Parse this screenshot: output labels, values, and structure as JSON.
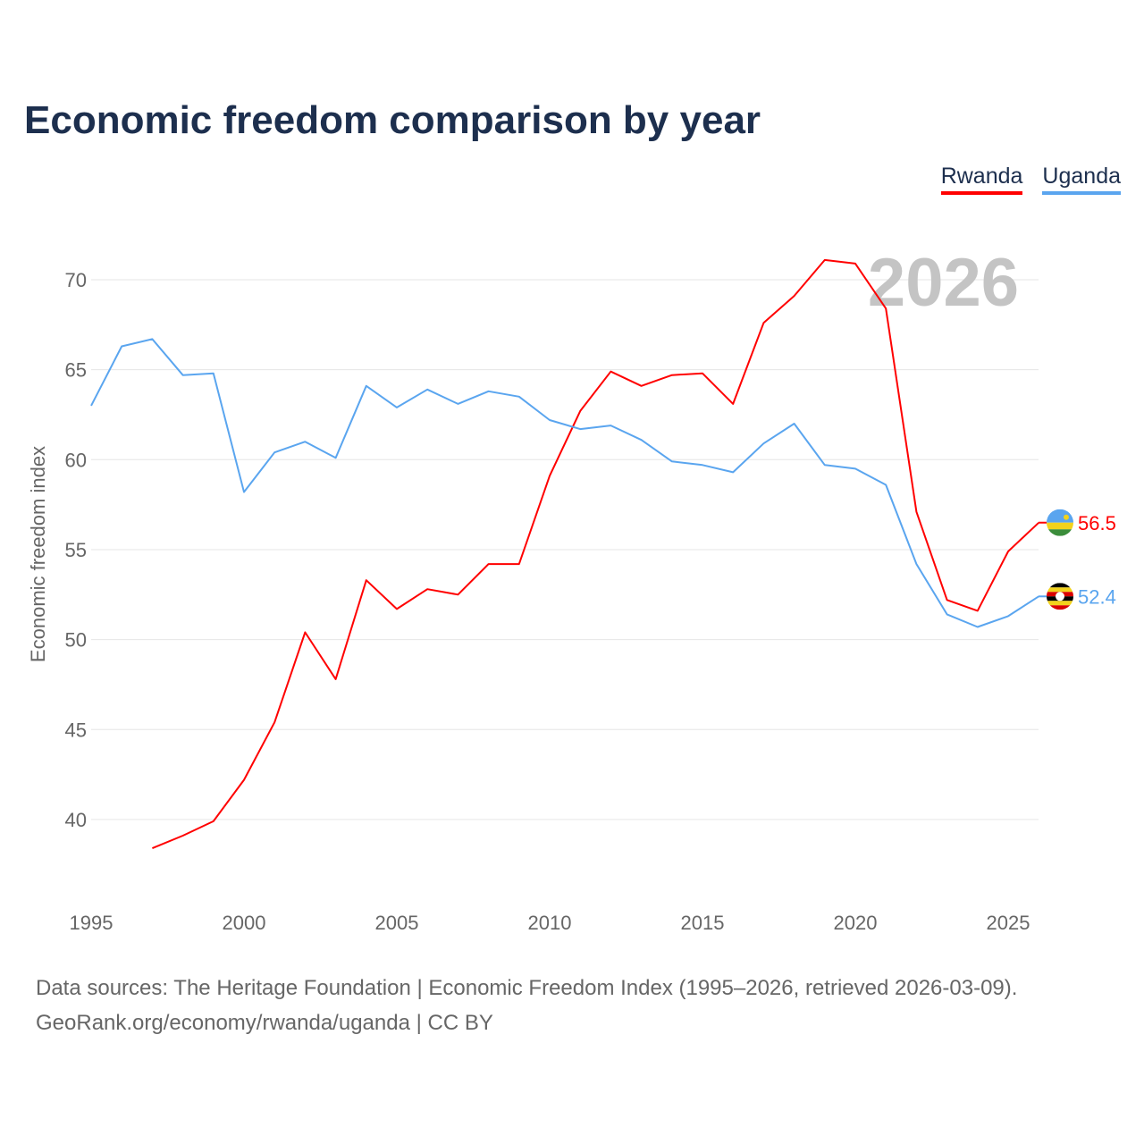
{
  "title": "Economic freedom comparison by year",
  "legend": [
    {
      "name": "Rwanda",
      "color": "#ff0000"
    },
    {
      "name": "Uganda",
      "color": "#5aa5ef"
    }
  ],
  "year_watermark": "2026",
  "footer": {
    "line1": "Data sources: The Heritage Foundation | Economic Freedom Index (1995–2026, retrieved 2026-03-09).",
    "line2": "GeoRank.org/economy/rwanda/uganda | CC BY"
  },
  "chart_data": {
    "type": "line",
    "title": "Economic freedom comparison by year",
    "xlabel": "",
    "ylabel": "Economic freedom index",
    "xlim": [
      1995,
      2026
    ],
    "ylim": [
      35.4,
      71.6
    ],
    "xticks": [
      1995,
      2000,
      2005,
      2010,
      2015,
      2020,
      2025
    ],
    "yticks": [
      40,
      45,
      50,
      55,
      60,
      65,
      70
    ],
    "grid": true,
    "legend_position": "top-right",
    "series": [
      {
        "name": "Rwanda",
        "color": "#ff0000",
        "end_label": "56.5",
        "x": [
          1997,
          1998,
          1999,
          2000,
          2001,
          2002,
          2003,
          2004,
          2005,
          2006,
          2007,
          2008,
          2009,
          2010,
          2011,
          2012,
          2013,
          2014,
          2015,
          2016,
          2017,
          2018,
          2019,
          2020,
          2021,
          2022,
          2023,
          2024,
          2025,
          2026
        ],
        "values": [
          38.4,
          39.1,
          39.9,
          42.2,
          45.4,
          50.4,
          47.8,
          53.3,
          51.7,
          52.8,
          52.5,
          54.2,
          54.2,
          59.1,
          62.7,
          64.9,
          64.1,
          64.7,
          64.8,
          63.1,
          67.6,
          69.1,
          71.1,
          70.9,
          68.4,
          57.1,
          52.2,
          51.6,
          54.9,
          56.5
        ]
      },
      {
        "name": "Uganda",
        "color": "#5aa5ef",
        "end_label": "52.4",
        "x": [
          1995,
          1996,
          1997,
          1998,
          1999,
          2000,
          2001,
          2002,
          2003,
          2004,
          2005,
          2006,
          2007,
          2008,
          2009,
          2010,
          2011,
          2012,
          2013,
          2014,
          2015,
          2016,
          2017,
          2018,
          2019,
          2020,
          2021,
          2022,
          2023,
          2024,
          2025,
          2026
        ],
        "values": [
          63.0,
          66.3,
          66.7,
          64.7,
          64.8,
          58.2,
          60.4,
          61.0,
          60.1,
          64.1,
          62.9,
          63.9,
          63.1,
          63.8,
          63.5,
          62.2,
          61.7,
          61.9,
          61.1,
          59.9,
          59.7,
          59.3,
          60.9,
          62.0,
          59.7,
          59.5,
          58.6,
          54.2,
          51.4,
          50.7,
          51.3,
          52.4
        ]
      }
    ]
  }
}
